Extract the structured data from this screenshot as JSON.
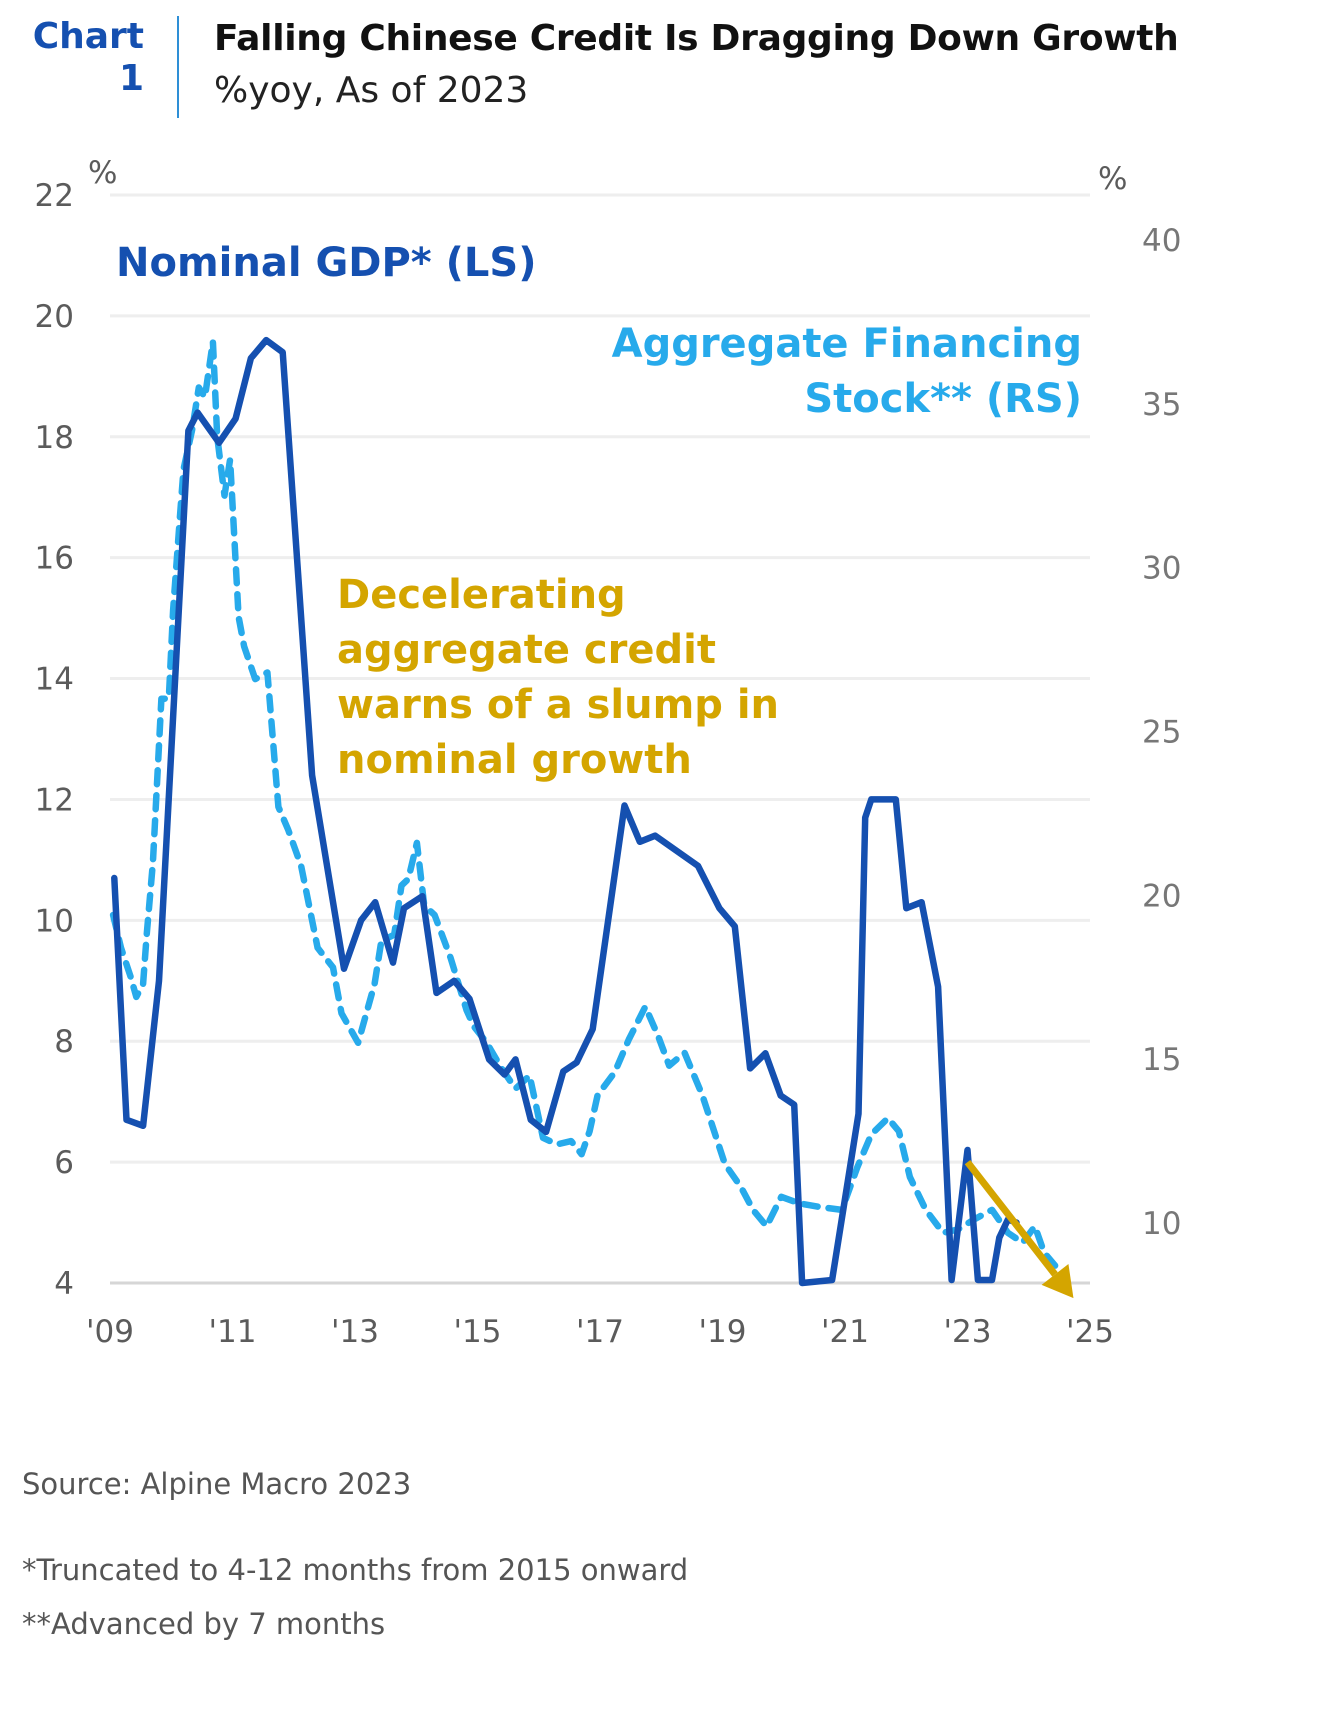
{
  "header": {
    "chart_label_line1": "Chart",
    "chart_label_line2": "1",
    "title": "Falling Chinese Credit Is Dragging Down Growth",
    "subtitle": "%yoy, As of 2023"
  },
  "colors": {
    "gdp": "#1550b0",
    "afs": "#27aaeb",
    "annotation": "#d4a500",
    "grid": "#eeeeee",
    "axis_text": "#5b5b5b"
  },
  "chart_data": {
    "type": "line",
    "title": "Falling Chinese Credit Is Dragging Down Growth",
    "subtitle": "%yoy, As of 2023",
    "xlabel": "",
    "x_ticks": [
      "'09",
      "'11",
      "'13",
      "'15",
      "'17",
      "'19",
      "'21",
      "'23",
      "'25"
    ],
    "x_tick_values": [
      2009,
      2011,
      2013,
      2015,
      2017,
      2019,
      2021,
      2023,
      2025
    ],
    "xlim": [
      2009,
      2025
    ],
    "y_left": {
      "label": "%",
      "ticks": [
        4,
        6,
        8,
        10,
        12,
        14,
        16,
        18,
        20,
        22
      ],
      "ylim": [
        4,
        22
      ]
    },
    "y_right": {
      "label": "%",
      "ticks": [
        10,
        15,
        20,
        25,
        30,
        35,
        40
      ],
      "ylim": [
        8.6,
        41.3
      ]
    },
    "grid": true,
    "series": [
      {
        "name": "Nominal GDP* (LS)",
        "axis": "left",
        "style": "solid",
        "x": [
          2009.07,
          2009.27,
          2009.54,
          2009.8,
          2010.28,
          2010.43,
          2010.78,
          2011.05,
          2011.3,
          2011.55,
          2011.82,
          2012.3,
          2012.82,
          2013.1,
          2013.33,
          2013.62,
          2013.8,
          2014.1,
          2014.33,
          2014.62,
          2014.87,
          2015.19,
          2015.44,
          2015.62,
          2015.87,
          2016.12,
          2016.4,
          2016.62,
          2016.88,
          2017.4,
          2017.65,
          2017.9,
          2018.6,
          2018.95,
          2019.2,
          2019.45,
          2019.7,
          2019.95,
          2020.17,
          2020.3,
          2020.79,
          2021.22,
          2021.33,
          2021.43,
          2021.83,
          2022.0,
          2022.25,
          2022.52,
          2022.74,
          2023.0,
          2023.17,
          2023.4,
          2023.52,
          2023.66,
          2023.8
        ],
        "values": [
          10.7,
          6.7,
          6.6,
          9.0,
          18.1,
          18.4,
          17.9,
          18.3,
          19.3,
          19.6,
          19.4,
          12.4,
          9.2,
          10.0,
          10.3,
          9.3,
          10.2,
          10.4,
          8.8,
          9.0,
          8.7,
          7.7,
          7.45,
          7.7,
          6.7,
          6.5,
          7.5,
          7.65,
          8.2,
          11.9,
          11.3,
          11.4,
          10.9,
          10.2,
          9.9,
          7.55,
          7.8,
          7.1,
          6.95,
          4.0,
          4.05,
          6.8,
          11.7,
          12.0,
          12.0,
          10.2,
          10.3,
          8.9,
          4.05,
          6.2,
          4.05,
          4.05,
          4.75,
          5.05,
          5.0
        ]
      },
      {
        "name": "Aggregate Financing Stock** (RS)",
        "axis": "right",
        "style": "dashed",
        "x": [
          2009.05,
          2009.18,
          2009.34,
          2009.43,
          2009.54,
          2009.6,
          2009.7,
          2009.84,
          2009.96,
          2010.03,
          2010.14,
          2010.2,
          2010.34,
          2010.45,
          2010.55,
          2010.68,
          2010.75,
          2010.87,
          2010.96,
          2011.1,
          2011.19,
          2011.37,
          2011.57,
          2011.75,
          2011.91,
          2012.12,
          2012.39,
          2012.64,
          2012.78,
          2013.05,
          2013.32,
          2013.43,
          2013.64,
          2013.76,
          2013.87,
          2014.01,
          2014.13,
          2014.3,
          2014.56,
          2014.82,
          2014.94,
          2015.15,
          2015.4,
          2015.62,
          2015.85,
          2016.07,
          2016.3,
          2016.53,
          2016.7,
          2016.83,
          2016.96,
          2017.24,
          2017.47,
          2017.74,
          2017.95,
          2018.13,
          2018.38,
          2018.67,
          2019.04,
          2019.3,
          2019.5,
          2019.72,
          2019.96,
          2020.25,
          2020.55,
          2020.95,
          2021.2,
          2021.43,
          2021.7,
          2021.88,
          2022.06,
          2022.32,
          2022.6,
          2022.84,
          2023.1,
          2023.4,
          2023.66,
          2023.9,
          2024.1,
          2024.25,
          2024.43
        ],
        "values": [
          19.4,
          18.4,
          17.5,
          16.9,
          17.3,
          18.8,
          21.0,
          26.0,
          26.0,
          28.7,
          31.5,
          33.0,
          34.2,
          35.5,
          35.2,
          36.9,
          34.0,
          32.2,
          33.3,
          28.5,
          27.6,
          26.6,
          26.8,
          22.7,
          22.0,
          20.9,
          18.4,
          17.8,
          16.4,
          15.5,
          17.3,
          18.6,
          18.8,
          20.3,
          20.5,
          21.6,
          19.7,
          19.4,
          18.1,
          16.5,
          16.0,
          15.5,
          14.7,
          14.1,
          14.5,
          12.6,
          12.4,
          12.5,
          12.1,
          12.8,
          13.9,
          14.6,
          15.6,
          16.6,
          15.7,
          14.8,
          15.2,
          13.9,
          11.8,
          11.1,
          10.4,
          9.9,
          10.8,
          10.6,
          10.5,
          10.4,
          11.7,
          12.7,
          13.2,
          12.8,
          11.4,
          10.4,
          9.7,
          9.8,
          10.1,
          10.4,
          9.7,
          9.4,
          9.9,
          9.1,
          8.7
        ]
      }
    ],
    "annotations": [
      {
        "text": "Nominal GDP* (LS)",
        "color": "gdp",
        "position": "top-left"
      },
      {
        "text": [
          "Aggregate Financing",
          "Stock** (RS)"
        ],
        "color": "afs",
        "position": "top-right"
      },
      {
        "text": [
          "Decelerating",
          "aggregate credit",
          "warns of a slump in",
          "nominal growth"
        ],
        "color": "annotation",
        "position": "center"
      },
      {
        "type": "arrow",
        "from": {
          "x": 2023.0,
          "y_left": 6.0
        },
        "to": {
          "x": 2024.73,
          "y_left": 3.75
        },
        "color": "annotation"
      }
    ]
  },
  "footer": {
    "source": "Source: Alpine Macro 2023",
    "note1": "*Truncated to 4-12 months from 2015 onward",
    "note2": "**Advanced by 7 months"
  }
}
